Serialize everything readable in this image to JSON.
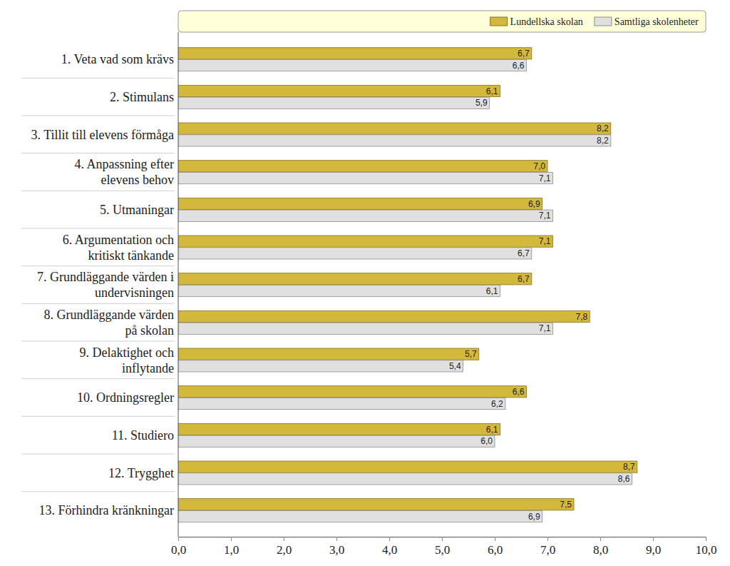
{
  "chart_data": {
    "type": "bar",
    "orientation": "horizontal",
    "categories": [
      "1. Veta vad som krävs",
      "2. Stimulans",
      "3. Tillit till elevens förmåga",
      "4. Anpassning efter\nelevens behov",
      "5. Utmaningar",
      "6. Argumentation och\nkritiskt tänkande",
      "7. Grundläggande värden i\nundervisningen",
      "8. Grundläggande värden\npå skolan",
      "9. Delaktighet och\ninflytande",
      "10. Ordningsregler",
      "11. Studiero",
      "12. Trygghet",
      "13. Förhindra kränkningar"
    ],
    "series": [
      {
        "name": "Lundellska skolan",
        "color": "#d4b83c",
        "values": [
          6.7,
          6.1,
          8.2,
          7.0,
          6.9,
          7.1,
          6.7,
          7.8,
          5.7,
          6.6,
          6.1,
          8.7,
          7.5
        ],
        "value_labels": [
          "6,7",
          "6,1",
          "8,2",
          "7,0",
          "6,9",
          "7,1",
          "6,7",
          "7,8",
          "5,7",
          "6,6",
          "6,1",
          "8,7",
          "7,5"
        ]
      },
      {
        "name": "Samtliga skolenheter",
        "color": "#e0e0e0",
        "values": [
          6.6,
          5.9,
          8.2,
          7.1,
          7.1,
          6.7,
          6.1,
          7.1,
          5.4,
          6.2,
          6.0,
          8.6,
          6.9
        ],
        "value_labels": [
          "6,6",
          "5,9",
          "8,2",
          "7,1",
          "7,1",
          "6,7",
          "6,1",
          "7,1",
          "5,4",
          "6,2",
          "6,0",
          "8,6",
          "6,9"
        ]
      }
    ],
    "xlim": [
      0,
      10
    ],
    "xticks": [
      {
        "value": 0,
        "label": "0,0"
      },
      {
        "value": 1,
        "label": "1,0"
      },
      {
        "value": 2,
        "label": "2,0"
      },
      {
        "value": 3,
        "label": "3,0"
      },
      {
        "value": 4,
        "label": "4,0"
      },
      {
        "value": 5,
        "label": "5,0"
      },
      {
        "value": 6,
        "label": "6,0"
      },
      {
        "value": 7,
        "label": "7,0"
      },
      {
        "value": 8,
        "label": "8,0"
      },
      {
        "value": 9,
        "label": "9,0"
      },
      {
        "value": 10,
        "label": "10,0"
      }
    ],
    "grid": false,
    "legend": "top-right",
    "data_labels": true
  }
}
